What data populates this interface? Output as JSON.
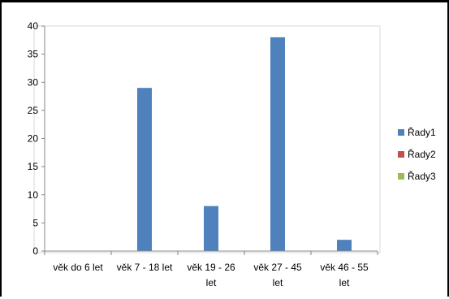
{
  "chart_data": {
    "type": "bar",
    "categories": [
      [
        "věk do 6 let"
      ],
      [
        "věk 7 - 18 let"
      ],
      [
        "věk 19 - 26",
        "let"
      ],
      [
        "věk 27 - 45",
        "let"
      ],
      [
        "věk 46 - 55",
        "let"
      ]
    ],
    "series": [
      {
        "name": "Řady1",
        "color": "#4F81BD",
        "values": [
          0,
          29,
          8,
          38,
          2
        ]
      },
      {
        "name": "Řady2",
        "color": "#C0504D",
        "values": [
          0,
          0,
          0,
          0,
          0
        ]
      },
      {
        "name": "Řady3",
        "color": "#9BBB59",
        "values": [
          0,
          0,
          0,
          0,
          0
        ]
      }
    ],
    "ylim": [
      0,
      40
    ],
    "yticks": [
      0,
      5,
      10,
      15,
      20,
      25,
      30,
      35,
      40
    ],
    "grid": false,
    "legend": "right",
    "colors": {
      "axis": "#868686",
      "plot_border": "#D9D9D9"
    }
  }
}
